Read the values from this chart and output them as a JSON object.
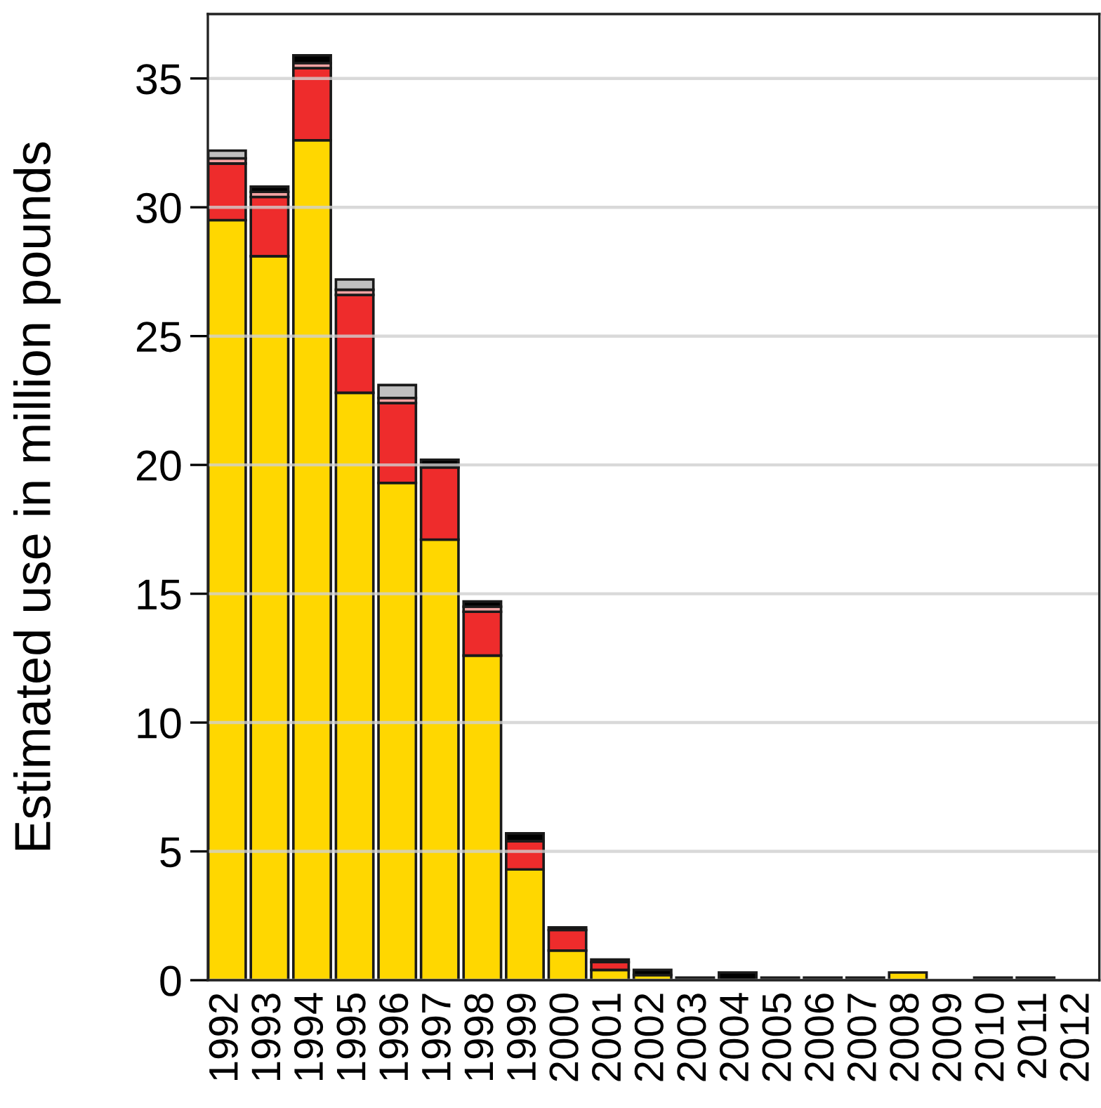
{
  "chart_data": {
    "type": "bar",
    "stacked": true,
    "ylabel": "Estimated use in million pounds",
    "categories": [
      "1992",
      "1993",
      "1994",
      "1995",
      "1996",
      "1997",
      "1998",
      "1999",
      "2000",
      "2001",
      "2002",
      "2003",
      "2004",
      "2005",
      "2006",
      "2007",
      "2008",
      "2009",
      "2010",
      "2011",
      "2012"
    ],
    "series": [
      {
        "color": "#ffd700",
        "values": [
          29.5,
          28.1,
          32.6,
          22.8,
          19.3,
          17.1,
          12.6,
          4.3,
          1.15,
          0.4,
          0.2,
          null,
          null,
          null,
          null,
          null,
          0.3,
          null,
          null,
          null,
          null
        ]
      },
      {
        "color": "#ee2c2c",
        "values": [
          2.2,
          2.3,
          2.8,
          3.8,
          3.1,
          2.8,
          1.7,
          1.1,
          0.8,
          0.3,
          null,
          null,
          null,
          null,
          null,
          null,
          null,
          null,
          null,
          null,
          null
        ]
      },
      {
        "color": "#f4a3a3",
        "values": [
          0.2,
          0.2,
          0.2,
          0.2,
          0.2,
          null,
          0.2,
          null,
          null,
          null,
          null,
          null,
          null,
          null,
          null,
          null,
          null,
          null,
          null,
          null,
          null
        ]
      },
      {
        "color": "#c0c0c0",
        "values": [
          0.3,
          null,
          null,
          0.4,
          0.5,
          null,
          null,
          null,
          null,
          null,
          null,
          null,
          null,
          null,
          null,
          null,
          null,
          null,
          null,
          null,
          null
        ]
      },
      {
        "color": "#000000",
        "values": [
          null,
          0.2,
          0.3,
          null,
          null,
          0.3,
          0.2,
          0.3,
          0.1,
          0.1,
          0.2,
          0.1,
          0.3,
          0.1,
          0.1,
          0.1,
          null,
          null,
          0.1,
          0.1,
          null
        ]
      }
    ],
    "ylim": [
      0,
      37.5
    ],
    "yticks": [
      0,
      5,
      10,
      15,
      20,
      25,
      30,
      35
    ],
    "grid": "y"
  }
}
